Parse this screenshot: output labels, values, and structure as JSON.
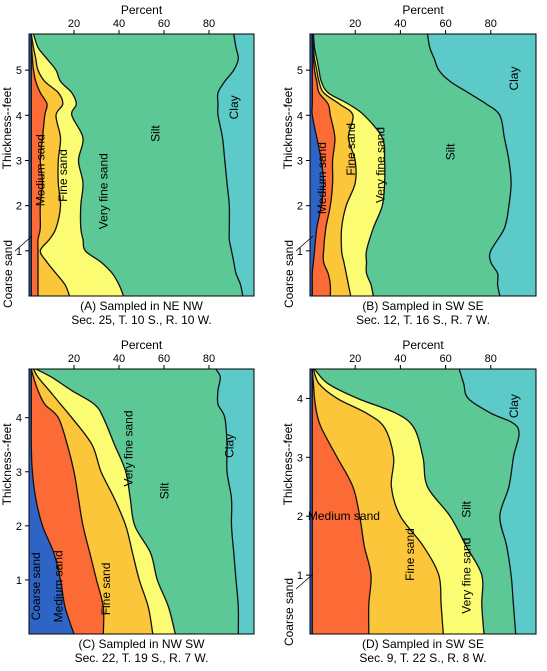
{
  "colors": {
    "coarse_sand": "#2e64c6",
    "medium_sand": "#fc6a35",
    "fine_sand": "#fcc63a",
    "very_fine_sand": "#fcfc72",
    "silt": "#5cc896",
    "clay": "#5ccac8"
  },
  "x_axis_label": "Percent",
  "y_axis_label": "Thickness--feet",
  "x_ticks": [
    "20",
    "40",
    "60",
    "80"
  ],
  "chart_data": [
    {
      "type": "area",
      "panel": "A",
      "caption": [
        "(A) Sampled in NE NW",
        "Sec. 25, T. 10 S., R. 10 W."
      ],
      "xlabel": "Percent",
      "ylabel": "Thickness--feet",
      "xlim": [
        0,
        100
      ],
      "ylim": [
        0,
        5.8
      ],
      "y_ticks": [
        "1",
        "2",
        "3",
        "4",
        "5"
      ],
      "layers": [
        "coarse_sand",
        "medium_sand",
        "fine_sand",
        "very_fine_sand",
        "silt",
        "clay"
      ],
      "layer_labels": [
        "Coarse sand",
        "Medium sand",
        "Fine sand",
        "Very fine sand",
        "Silt",
        "Clay"
      ],
      "depth": [
        0,
        0.25,
        0.5,
        0.75,
        1.0,
        1.25,
        1.5,
        2.0,
        2.5,
        3.0,
        3.5,
        4.0,
        4.25,
        4.5,
        4.75,
        5.0,
        5.25,
        5.5,
        5.8
      ],
      "cumulative_boundaries": [
        [
          1,
          1,
          1,
          1,
          1,
          1,
          1,
          1,
          1,
          1,
          1,
          1,
          1,
          1,
          1,
          1,
          1,
          1,
          1
        ],
        [
          4,
          4,
          4,
          4,
          4,
          4,
          5,
          5,
          6,
          5,
          6,
          7,
          8,
          5,
          3,
          2,
          1.5,
          1.2,
          1
        ],
        [
          18,
          16,
          12,
          8,
          5,
          9,
          12,
          14,
          13,
          13,
          14,
          12,
          15,
          13,
          7,
          4,
          3,
          2,
          1
        ],
        [
          42,
          40,
          37,
          32,
          25,
          24,
          23,
          23,
          24,
          22,
          24,
          19,
          21,
          19,
          14,
          12,
          8,
          4,
          2
        ],
        [
          95,
          94,
          92,
          91,
          90,
          89,
          89,
          89,
          88,
          87,
          86,
          84,
          84,
          84,
          87,
          91,
          93,
          92,
          91
        ],
        [
          100,
          100,
          100,
          100,
          100,
          100,
          100,
          100,
          100,
          100,
          100,
          100,
          100,
          100,
          100,
          100,
          100,
          100,
          100
        ]
      ]
    },
    {
      "type": "area",
      "panel": "B",
      "caption": [
        "(B) Sampled in SW SE",
        "Sec. 12, T. 16 S., R. 7 W."
      ],
      "xlabel": "Percent",
      "ylabel": "Thickness--feet",
      "xlim": [
        0,
        100
      ],
      "ylim": [
        0,
        5.8
      ],
      "y_ticks": [
        "1",
        "2",
        "3",
        "4",
        "5"
      ],
      "layers": [
        "coarse_sand",
        "medium_sand",
        "fine_sand",
        "very_fine_sand",
        "silt",
        "clay"
      ],
      "layer_labels": [
        "Coarse sand",
        "Medium sand",
        "Fine sand",
        "Very fine sand",
        "Silt",
        "Clay"
      ],
      "depth": [
        0,
        0.25,
        0.5,
        0.75,
        1.0,
        1.5,
        2.0,
        2.5,
        3.0,
        3.5,
        4.0,
        4.25,
        4.5,
        4.75,
        5.0,
        5.25,
        5.5,
        5.8
      ],
      "cumulative_boundaries": [
        [
          1,
          1,
          1,
          1.5,
          2,
          3,
          5,
          6,
          5,
          3,
          1,
          1,
          1,
          1,
          1,
          1,
          1,
          1
        ],
        [
          9,
          9,
          8,
          6,
          6,
          7,
          9,
          10,
          10,
          11,
          9,
          8,
          4,
          3,
          2,
          1.5,
          1,
          1
        ],
        [
          18,
          17,
          16,
          15,
          14,
          14,
          16,
          20,
          20,
          17,
          19,
          13,
          6,
          4,
          3,
          2,
          1.5,
          1
        ],
        [
          28,
          27,
          25,
          25,
          25,
          28,
          32,
          33,
          33,
          32,
          24,
          17,
          8,
          5,
          4,
          3,
          2,
          1.5
        ],
        [
          84,
          83,
          83,
          80,
          80,
          86,
          88,
          89,
          88,
          86,
          84,
          78,
          70,
          62,
          57,
          55,
          53,
          52
        ],
        [
          100,
          100,
          100,
          100,
          100,
          100,
          100,
          100,
          100,
          100,
          100,
          100,
          100,
          100,
          100,
          100,
          100,
          100
        ]
      ]
    },
    {
      "type": "area",
      "panel": "C",
      "caption": [
        "(C) Sampled in NW SW",
        "Sec. 22, T. 19 S., R. 7 W."
      ],
      "xlabel": "Percent",
      "ylabel": "Thickness--feet",
      "xlim": [
        0,
        100
      ],
      "ylim": [
        0,
        4.9
      ],
      "y_ticks": [
        "1",
        "2",
        "3",
        "4"
      ],
      "layers": [
        "coarse_sand",
        "medium_sand",
        "fine_sand",
        "very_fine_sand",
        "silt",
        "clay"
      ],
      "layer_labels": [
        "Coarse sand",
        "Medium sand",
        "Fine sand",
        "Very fine sand",
        "Silt",
        "Clay"
      ],
      "depth": [
        0,
        0.5,
        1.0,
        1.5,
        2.0,
        2.5,
        3.0,
        3.5,
        4.0,
        4.25,
        4.5,
        4.75,
        4.9
      ],
      "cumulative_boundaries": [
        [
          20,
          16,
          14,
          11,
          6,
          3,
          1.5,
          1,
          1,
          1,
          1,
          1,
          1
        ],
        [
          33,
          33,
          30,
          27,
          24,
          22,
          20,
          17,
          13,
          7,
          4,
          2,
          1
        ],
        [
          55,
          53,
          49,
          46,
          43,
          38,
          32,
          28,
          19,
          14,
          9,
          4,
          2
        ],
        [
          65,
          62,
          57,
          54,
          47,
          45,
          43,
          38,
          33,
          29,
          19,
          10,
          3
        ],
        [
          93,
          93,
          92,
          91,
          90,
          90,
          88,
          88,
          87,
          84,
          84,
          85,
          83
        ],
        [
          100,
          100,
          100,
          100,
          100,
          100,
          100,
          100,
          100,
          100,
          100,
          100,
          100
        ]
      ]
    },
    {
      "type": "area",
      "panel": "D",
      "caption": [
        "(D) Sampled in SW SE",
        "Sec. 9, T. 22 S., R. 8 W."
      ],
      "xlabel": "Percent",
      "ylabel": "Thickness--feet",
      "xlim": [
        0,
        100
      ],
      "ylim": [
        0,
        4.5
      ],
      "y_ticks": [
        "1",
        "2",
        "3",
        "4"
      ],
      "layers": [
        "coarse_sand",
        "medium_sand",
        "fine_sand",
        "very_fine_sand",
        "silt",
        "clay"
      ],
      "layer_labels": [
        "Coarse sand",
        "Medium sand",
        "Fine sand",
        "Very fine sand",
        "Silt",
        "Clay"
      ],
      "depth": [
        0,
        0.5,
        1.0,
        1.5,
        2.0,
        2.5,
        3.0,
        3.5,
        3.75,
        4.0,
        4.25,
        4.5
      ],
      "cumulative_boundaries": [
        [
          1,
          1,
          1,
          1,
          1,
          1,
          1,
          1,
          1,
          1,
          1,
          1
        ],
        [
          26,
          26,
          27,
          24,
          22,
          19,
          12,
          5,
          3,
          2,
          1.5,
          1
        ],
        [
          59,
          58,
          57,
          50,
          40,
          36,
          37,
          33,
          25,
          12,
          4,
          1.5
        ],
        [
          77,
          76,
          76,
          69,
          62,
          52,
          50,
          46,
          38,
          21,
          8,
          2
        ],
        [
          91,
          90,
          89,
          87,
          84,
          88,
          90,
          92,
          80,
          70,
          68,
          66
        ],
        [
          100,
          100,
          100,
          100,
          100,
          100,
          100,
          100,
          100,
          100,
          100,
          100
        ]
      ]
    }
  ]
}
